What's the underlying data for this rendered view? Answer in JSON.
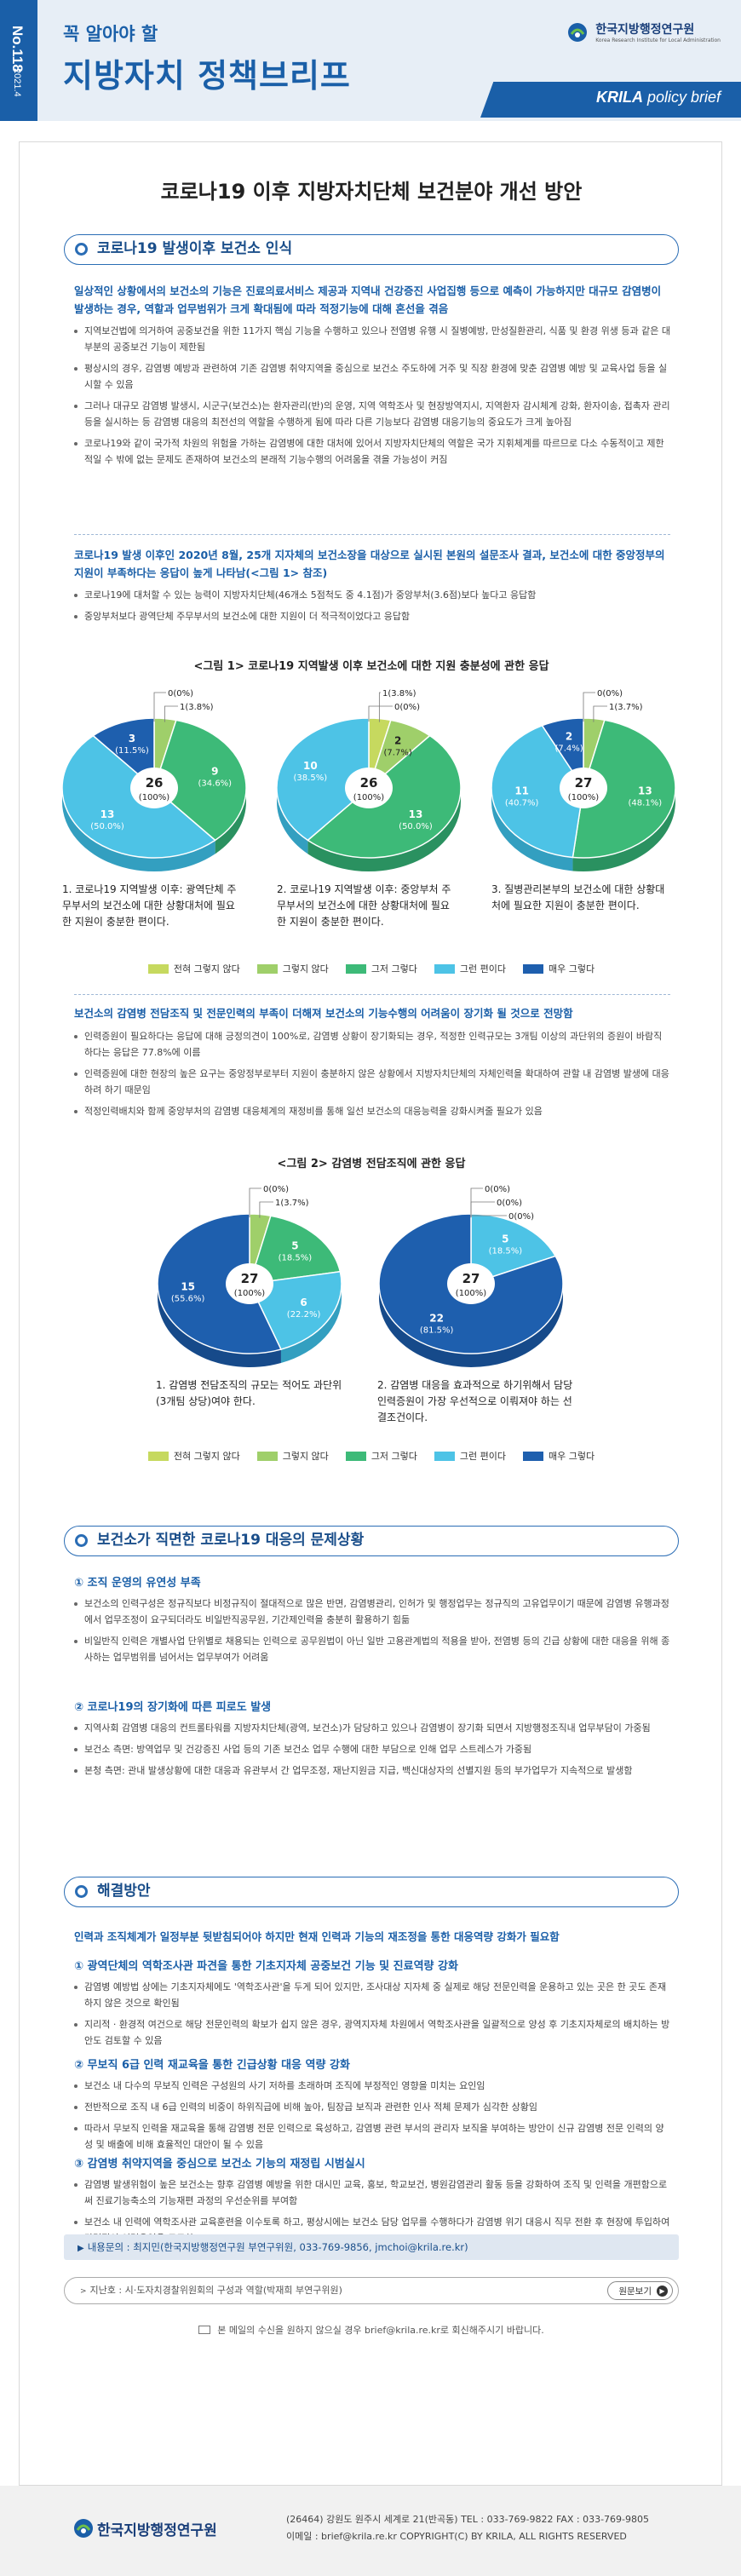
{
  "header": {
    "issue": "No.118",
    "date": "2021.4",
    "kicker": "꼭 알아야 할",
    "title": "지방자치 정책브리프",
    "org_ko": "한국지방행정연구원",
    "org_en": "Korea Research Institute for Local Administration",
    "brand_bold": "KRILA",
    "brand_rest": " policy brief"
  },
  "doc_title": "코로나19 이후 지방자치단체 보건분야 개선 방안",
  "section1": {
    "heading": "코로나19 발생이후 보건소 인식",
    "lead1": "일상적인 상황에서의 보건소의 기능은 진료의료서비스 제공과 지역내 건강증진 사업집행 등으로 예측이 가능하지만 대규모 감염병이 발생하는 경우, 역할과 업무범위가 크게 확대됨에 따라 적정기능에 대해 혼선을 겪음",
    "bullets1": [
      "지역보건법에 의거하여 공중보건을 위한 11가지 핵심 기능을 수행하고 있으나 전염병 유행 시 질병예방, 만성질환관리, 식품 및 환경 위생 등과 같은 대부분의 공중보건 기능이 제한됨",
      "평상시의 경우, 감염병 예방과 관련하여 기존 감염병 취약지역을 중심으로 보건소 주도하에 거주 및 직장 환경에 맞춘 감염병 예방 및 교육사업 등을 실시할 수 있음",
      "그러나 대규모 감염병 발생시, 시군구(보건소)는 환자관리(반)의 운영, 지역 역학조사 및 현장방역지시, 지역환자 감시체계 강화, 환자이송, 접촉자 관리 등을 실시하는 등 감염병 대응의 최전선의 역할을 수행하게 됨에 따라 다른 기능보다 감염병 대응기능의 중요도가 크게 높아짐",
      "코로나19와 같이 국가적 차원의 위험을 가하는 감염병에 대한 대처에 있어서 지방자치단체의 역할은 국가 지휘체계를 따르므로 다소 수동적이고 제한적일 수 밖에 없는 문제도 존재하여 보건소의 본래적 기능수행의 어려움을 겪을 가능성이 커짐"
    ],
    "lead2": "코로나19 발생 이후인 2020년 8월, 25개 지자체의 보건소장을 대상으로 실시된 본원의 설문조사 결과, 보건소에 대한 중앙정부의 지원이 부족하다는 응답이 높게 나타남(<그림 1> 참조)",
    "bullets2": [
      "코로나19에 대처할 수 있는 능력이 지방자치단체(46개소 5점척도 중 4.1점)가 중앙부처(3.6점)보다 높다고 응답함",
      "중앙부처보다 광역단체 주무부서의 보건소에 대한 지원이 더 적극적이었다고 응답함"
    ]
  },
  "figure1": {
    "title": "<그림 1> 코로나19 지역발생 이후 보건소에 대한 지원 충분성에 관한 응답",
    "captions": [
      "1. 코로나19 지역발생 이후: 광역단체 주무부서의 보건소에 대한 상황대처에 필요한 지원이 충분한 편이다.",
      "2. 코로나19 지역발생 이후: 중앙부처 주무부서의 보건소에 대한 상황대처에 필요한 지원이 충분한 편이다.",
      "3. 질병관리본부의 보건소에 대한 상황대처에 필요한 지원이 충분한 편이다."
    ]
  },
  "legend": [
    "전혀 그렇지 않다",
    "그렇지 않다",
    "그저 그렇다",
    "그런 편이다",
    "매우 그렇다"
  ],
  "chart_data": [
    {
      "type": "pie",
      "title": "1",
      "total_label": "26",
      "total_pct": "(100%)",
      "series": [
        {
          "name": "전혀 그렇지 않다",
          "value": 0,
          "pct": "0(0%)"
        },
        {
          "name": "그렇지 않다",
          "value": 1,
          "pct": "1(3.8%)"
        },
        {
          "name": "그저 그렇다",
          "value": 9,
          "pct": "(34.6%)"
        },
        {
          "name": "그런 편이다",
          "value": 13,
          "pct": "(50.0%)"
        },
        {
          "name": "매우 그렇다",
          "value": 3,
          "pct": "(11.5%)"
        }
      ]
    },
    {
      "type": "pie",
      "title": "2",
      "total_label": "26",
      "total_pct": "(100%)",
      "series": [
        {
          "name": "전혀 그렇지 않다",
          "value": 1,
          "pct": "1(3.8%)"
        },
        {
          "name": "그렇지 않다",
          "value": 2,
          "pct": "(7.7%)"
        },
        {
          "name": "그저 그렇다",
          "value": 13,
          "pct": "(50.0%)"
        },
        {
          "name": "그런 편이다",
          "value": 10,
          "pct": "(38.5%)"
        },
        {
          "name": "매우 그렇다",
          "value": 0,
          "pct": "0(0%)"
        }
      ]
    },
    {
      "type": "pie",
      "title": "3",
      "total_label": "27",
      "total_pct": "(100%)",
      "series": [
        {
          "name": "전혀 그렇지 않다",
          "value": 0,
          "pct": "0(0%)"
        },
        {
          "name": "그렇지 않다",
          "value": 1,
          "pct": "1(3.7%)"
        },
        {
          "name": "그저 그렇다",
          "value": 13,
          "pct": "(48.1%)"
        },
        {
          "name": "그런 편이다",
          "value": 11,
          "pct": "(40.7%)"
        },
        {
          "name": "매우 그렇다",
          "value": 2,
          "pct": "(7.4%)"
        }
      ]
    },
    {
      "type": "pie",
      "title": "4",
      "total_label": "27",
      "total_pct": "(100%)",
      "series": [
        {
          "name": "전혀 그렇지 않다",
          "value": 0,
          "pct": "0(0%)"
        },
        {
          "name": "그렇지 않다",
          "value": 1,
          "pct": "1(3.7%)"
        },
        {
          "name": "그저 그렇다",
          "value": 5,
          "pct": "(18.5%)"
        },
        {
          "name": "그런 편이다",
          "value": 6,
          "pct": "(22.2%)"
        },
        {
          "name": "매우 그렇다",
          "value": 15,
          "pct": "(55.6%)"
        }
      ]
    },
    {
      "type": "pie",
      "title": "5",
      "total_label": "27",
      "total_pct": "(100%)",
      "series": [
        {
          "name": "전혀 그렇지 않다",
          "value": 0,
          "pct": "0(0%)"
        },
        {
          "name": "그렇지 않다",
          "value": 0,
          "pct": "0(0%)"
        },
        {
          "name": "그저 그렇다",
          "value": 0,
          "pct": "0(0%)"
        },
        {
          "name": "그런 편이다",
          "value": 5,
          "pct": "(18.5%)"
        },
        {
          "name": "매우 그렇다",
          "value": 22,
          "pct": "(81.5%)"
        }
      ]
    }
  ],
  "colors": {
    "c0": "#c6d95f",
    "c1": "#9fcf6a",
    "c2": "#3dba78",
    "c3": "#4dc3e6",
    "c4": "#1e5fae"
  },
  "section1b": {
    "lead": "보건소의 감염병 전담조직 및 전문인력의 부족이 더해져  보건소의 기능수행의 어려움이 장기화 될 것으로 전망함",
    "bullets": [
      "인력증원이 필요하다는 응답에 대해 긍정의견이 100%로, 감염병 상황이 장기화되는 경우, 적정한 인력규모는 3개팀 이상의 과단위의 증원이 바람직하다는 응답은 77.8%에 이름",
      "인력증원에 대한 현장의 높은 요구는 중앙정부로부터 지원이 충분하지 않은 상황에서 지방자치단체의 자체인력을 확대하여 관할 내 감염병 발생에 대응하려 하기 때문임",
      "적정인력배치와 함께 중앙부처의 감염병 대응체계의 재정비를 통해 일선 보건소의 대응능력을 강화시켜줄 필요가 있음"
    ]
  },
  "figure2": {
    "title": "<그림 2> 감염병 전담조직에 관한 응답",
    "captions": [
      "1. 감염병 전담조직의 규모는 적어도 과단위(3개팀 상당)여야 한다.",
      "2. 감염병 대응을 효과적으로 하기위해서 담당 인력증원이 가장 우선적으로 이뤄져야 하는 선결조건이다."
    ]
  },
  "section2": {
    "heading": "보건소가 직면한 코로나19 대응의 문제상황",
    "sub1": "① 조직 운영의 유연성 부족",
    "bullets1": [
      "보건소의 인력구성은 정규직보다 비정규직이 절대적으로 많은 반면, 감염병관리, 인허가 및 행정업무는 정규직의 고유업무이기 때문에 감염병 유행과정에서 업무조정이 요구되더라도 비일반직공무원, 기간제인력을 충분히 활용하기 힘듦",
      "비일반직 인력은 개별사업 단위별로 채용되는 인력으로 공무원법이 아닌 일반 고용관계법의 적용을 받아, 전염병 등의 긴급 상황에 대한 대응을 위해 종사하는 업무범위를 넘어서는 업무부여가 어려움"
    ],
    "sub2": "② 코로나19의 장기화에 따른 피로도 발생",
    "bullets2": [
      "지역사회 감염병 대응의 컨트롤타워를 지방자치단체(광역, 보건소)가 담당하고 있으나 감염병이 장기화 되면서 지방행정조직내 업무부담이 가중됨",
      "보건소 측면: 방역업무 및 건강증진 사업 등의 기존 보건소 업무 수행에 대한 부담으로 인해 업무 스트레스가 가중됨",
      "본청 측면: 관내 발생상황에 대한 대응과 유관부서 간 업무조정, 재난지원금 지급, 백신대상자의 선별지원 등의 부가업무가 지속적으로 발생함"
    ]
  },
  "section3": {
    "heading": "해결방안",
    "lead": "인력과 조직체계가 일정부분 뒷받침되어야 하지만 현재 인력과 기능의 재조정을 통한 대응역량 강화가 필요함",
    "sub1": "① 광역단체의 역학조사관 파견을 통한 기초지자체 공중보건 기능 및 진료역량 강화",
    "bullets1": [
      "감염병 예방법 상에는 기초지자체에도 '역학조사관'을 두게 되어 있지만, 조사대상 지자체 중 실제로 해당 전문인력을 운용하고 있는 곳은 한 곳도 존재하지 않은 것으로 확인됨",
      "지리적 · 환경적 여건으로 해당 전문인력의 확보가 쉽지 않은 경우, 광역지자체 차원에서 역학조사관을 일괄적으로 양성 후 기초지자체로의 배치하는 방안도 검토할 수 있음"
    ],
    "sub2": "② 무보직 6급 인력 재교육을 통한 긴급상황 대응 역량 강화",
    "bullets2": [
      "보건소 내 다수의 무보직 인력은 구성원의 사기 저하를 초래하며 조직에 부정적인 영향을 미치는 요인임",
      "전반적으로 조직 내 6급 인력의 비중이 하위직급에 비해 높아, 팀장급 보직과 관련한 인사 적체 문제가 심각한 상황임",
      "따라서 무보직 인력을 재교육을 통해 감염병 전문 인력으로 육성하고, 감염병 관련 부서의 관리자 보직을 부여하는 방안이 신규 감염병 전문 인력의 양성 및 배출에 비해 효율적인 대안이 될 수 있음"
    ],
    "sub3": "③ 감염병 취약지역을 중심으로 보건소 기능의 재정립 시범실시",
    "bullets3": [
      "감염병 발생위험이 높은 보건소는 향후 감염병 예방을 위한 대시민 교육, 홍보, 학교보건, 병원감염관리 활동 등을 강화하여 조직 및 인력을 개편함으로써 진료기능축소의 기능재편 과정의 우선순위를 부여함",
      "보건소 내 인력에 역학조사관 교육훈련을 이수토록 하고, 평상시에는 보건소 담당 업무를 수행하다가 감염병 위기 대응시 직무 전환 후 현장에 투입하여 탄력적인 인력운영을 도모함"
    ]
  },
  "contact": "내용문의 : 최지민(한국지방행정연구원 부연구위원, 033-769-9856, jmchoi@krila.re.kr)",
  "prev": {
    "text": "지난호 : 시·도자치경찰위원회의 구성과 역할(박재희 부연구위원)",
    "button": "원문보기"
  },
  "mailnote": "본 메일의 수신을 원하지 않으실 경우 brief@krila.re.kr로 회신해주시기 바랍니다.",
  "footer": {
    "org": "한국지방행정연구원",
    "address": "(26464) 강원도 원주시 세계로 21(반곡동)  TEL : 033-769-9822    FAX : 033-769-9805",
    "email": "이메일 : brief@krila.re.kr    COPYRIGHT(C) BY KRILA, ALL RIGHTS RESERVED"
  }
}
